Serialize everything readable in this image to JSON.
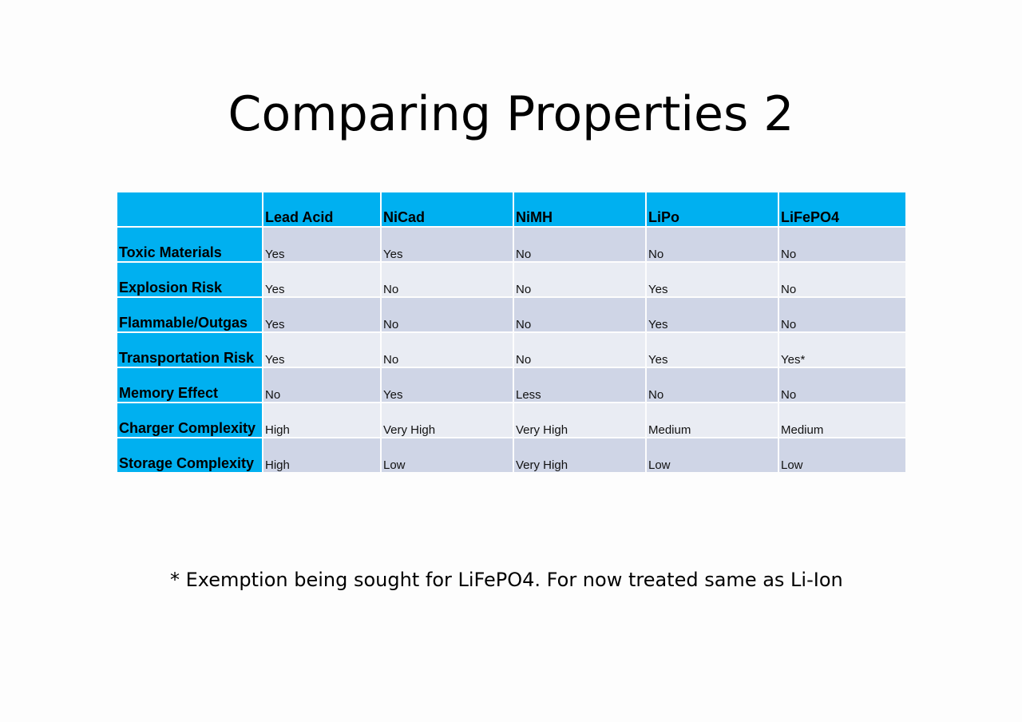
{
  "slide": {
    "title": "Comparing Properties 2",
    "footnote": "* Exemption being sought for LiFePO4.  For now treated same as Li-Ion"
  },
  "table": {
    "corner_label": "",
    "columns": [
      "Lead Acid",
      "NiCad",
      "NiMH",
      "LiPo",
      "LiFePO4"
    ],
    "rows": [
      {
        "label": "Toxic Materials",
        "cells": [
          "Yes",
          "Yes",
          "No",
          "No",
          "No"
        ]
      },
      {
        "label": "Explosion Risk",
        "cells": [
          "Yes",
          "No",
          "No",
          "Yes",
          "No"
        ]
      },
      {
        "label": "Flammable/Outgas",
        "cells": [
          "Yes",
          "No",
          "No",
          "Yes",
          "No"
        ]
      },
      {
        "label": "Transportation Risk",
        "cells": [
          "Yes",
          "No",
          "No",
          "Yes",
          "Yes*"
        ]
      },
      {
        "label": "Memory Effect",
        "cells": [
          "No",
          "Yes",
          "Less",
          "No",
          "No"
        ]
      },
      {
        "label": "Charger Complexity",
        "cells": [
          "High",
          "Very High",
          "Very High",
          "Medium",
          "Medium"
        ]
      },
      {
        "label": "Storage Complexity",
        "cells": [
          "High",
          "Low",
          "Very High",
          "Low",
          "Low"
        ]
      }
    ]
  },
  "colors": {
    "header_blue": "#00b0f0",
    "row_dark": "#cfd5e6",
    "row_light": "#e9ecf3"
  }
}
